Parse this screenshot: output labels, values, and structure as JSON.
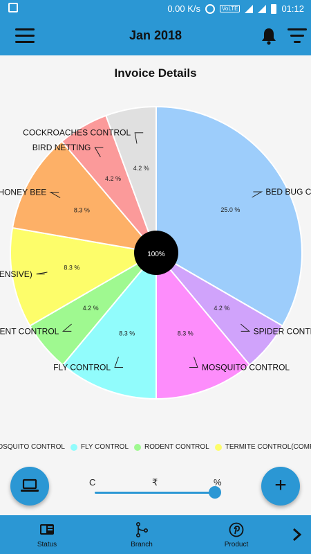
{
  "status_bar": {
    "speed": "0.00 K/s",
    "network": "VoLTE",
    "time": "01:12"
  },
  "app_bar": {
    "title": "Jan 2018",
    "icons": [
      "menu-icon",
      "bell-icon",
      "filter-icon"
    ]
  },
  "card": {
    "title": "Invoice Details"
  },
  "chart_data": {
    "type": "pie",
    "title": "Invoice Details",
    "center_label": "100%",
    "slices": [
      {
        "label": "BED BUG CONTROL",
        "percent": 25.0,
        "value_text": "25.0 %",
        "color": "#9dcdfb"
      },
      {
        "label": "SPIDER CONTROL",
        "percent": 4.2,
        "value_text": "4.2 %",
        "color": "#d0a3fb"
      },
      {
        "label": "MOSQUITO CONTROL",
        "percent": 8.3,
        "value_text": "8.3 %",
        "color": "#fd8dfb"
      },
      {
        "label": "FLY CONTROL",
        "percent": 8.3,
        "value_text": "8.3 %",
        "color": "#91fcfc"
      },
      {
        "label": "RODENT CONTROL",
        "percent": 4.2,
        "value_text": "4.2 %",
        "color": "#9ff990"
      },
      {
        "label": "TERMITE CONTROL(COMPREHENSIVE)",
        "percent": 8.3,
        "value_text": "8.3 %",
        "color": "#fdfd6a"
      },
      {
        "label": "HONEY BEE",
        "percent": 8.3,
        "value_text": "8.3 %",
        "color": "#fdb067"
      },
      {
        "label": "BIRD NETTING",
        "percent": 4.2,
        "value_text": "4.2 %",
        "color": "#fb9a9a"
      },
      {
        "label": "COCKROACHES CONTROL",
        "percent": 4.2,
        "value_text": "4.2 %",
        "color": "#e0e0e0"
      }
    ],
    "legend_visible": [
      {
        "label": "MOSQUITO CONTROL",
        "color": "#fd8dfb"
      },
      {
        "label": "FLY CONTROL",
        "color": "#91fcfc"
      },
      {
        "label": "RODENT CONTROL",
        "color": "#9ff990"
      },
      {
        "label": "TERMITE CONTROL(COMPREHENSIVE)",
        "color": "#fdfd6a"
      }
    ]
  },
  "controls": {
    "toggle_labels": [
      "C",
      "₹",
      "%"
    ],
    "slider_selected": "%",
    "fab_left_icon": "laptop-icon",
    "fab_right_label": "+"
  },
  "bottom_nav": {
    "items": [
      {
        "label": "Status",
        "icon": "status-icon"
      },
      {
        "label": "Branch",
        "icon": "branch-icon"
      },
      {
        "label": "Product",
        "icon": "pinterest-icon"
      }
    ],
    "next_icon": "chevron-right-icon"
  },
  "colors": {
    "primary": "#2b97d4",
    "background": "#f5f5f5"
  }
}
